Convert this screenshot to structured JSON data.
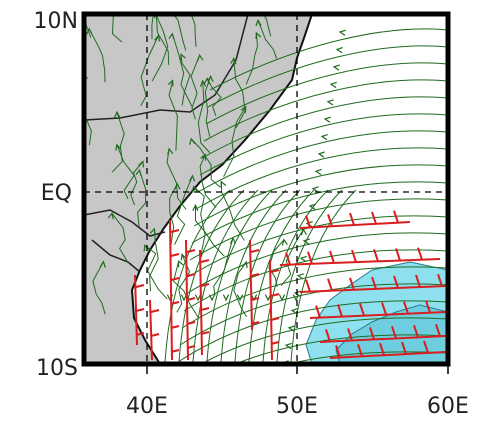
{
  "map": {
    "lat_labels": [
      "10N",
      "EQ",
      "10S"
    ],
    "lon_labels": [
      "40E",
      "50E",
      "60E"
    ],
    "colors": {
      "land": "#c7c7c7",
      "ocean": "#ffffff",
      "streamline": "#1f6b1f",
      "wind_vector": "#d81e1e",
      "shading": "#8fe0ee",
      "shading_dark": "#2a7a8c",
      "coast": "#111111",
      "frame": "#000000"
    }
  }
}
